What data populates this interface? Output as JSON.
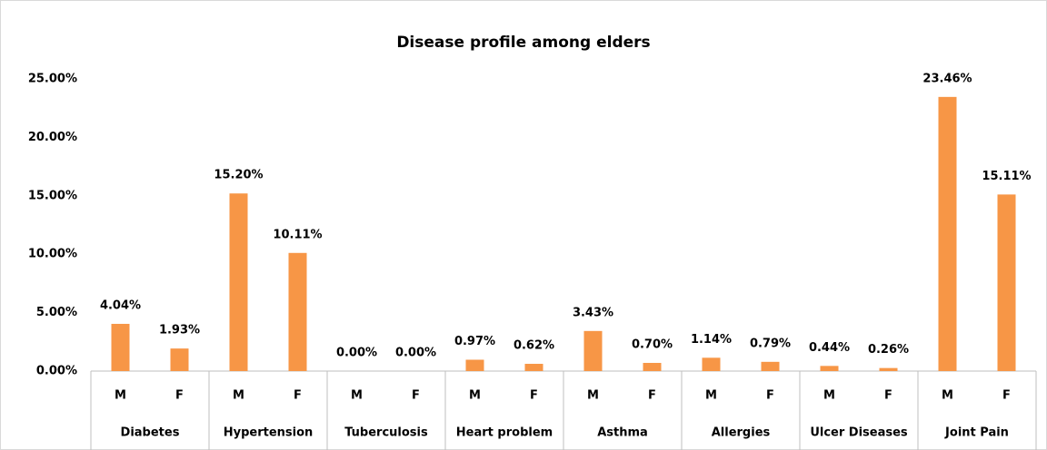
{
  "chart_data": {
    "type": "bar",
    "title": "Disease profile among elders",
    "categories": [
      "M",
      "F",
      "M",
      "F",
      "M",
      "F",
      "M",
      "F",
      "M",
      "F",
      "M",
      "F",
      "M",
      "F",
      "M",
      "F"
    ],
    "groups": [
      "Diabetes",
      "Hypertension",
      "Tuberculosis",
      "Heart problem",
      "Asthma",
      "Allergies",
      "Ulcer Diseases",
      "Joint Pain"
    ],
    "values": [
      4.04,
      1.93,
      15.2,
      10.11,
      0.0,
      0.0,
      0.97,
      0.62,
      3.43,
      0.7,
      1.14,
      0.79,
      0.44,
      0.26,
      23.46,
      15.11
    ],
    "value_labels": [
      "4.04%",
      "1.93%",
      "15.20%",
      "10.11%",
      "0.00%",
      "0.00%",
      "0.97%",
      "0.62%",
      "3.43%",
      "0.70%",
      "1.14%",
      "0.79%",
      "0.44%",
      "0.26%",
      "23.46%",
      "15.11%"
    ],
    "color": "#f79646",
    "ylim": [
      0,
      25
    ],
    "yticks": [
      {
        "value": 0,
        "label": "0.00%"
      },
      {
        "value": 5,
        "label": "5.00%"
      },
      {
        "value": 10,
        "label": "10.00%"
      },
      {
        "value": 15,
        "label": "15.00%"
      },
      {
        "value": 20,
        "label": "20.00%"
      },
      {
        "value": 25,
        "label": "25.00%"
      }
    ],
    "grid": false
  }
}
